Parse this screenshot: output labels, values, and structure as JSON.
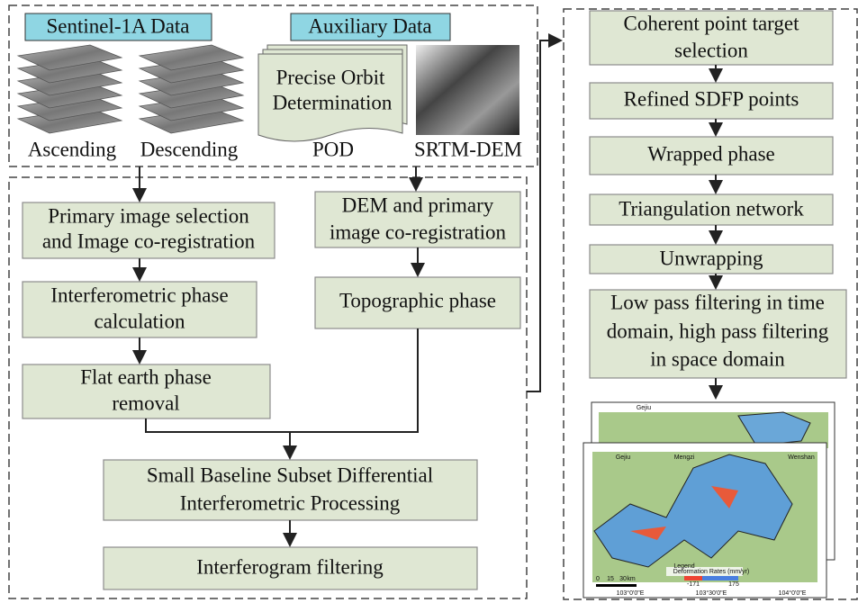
{
  "groups": {
    "sentinel": "Sentinel-1A Data",
    "auxiliary": "Auxiliary Data"
  },
  "inputs": {
    "ascending": "Ascending",
    "descending": "Descending",
    "orbit_doc": [
      "Precise Orbit",
      "Determination"
    ],
    "pod": "POD",
    "dem": "SRTM-DEM"
  },
  "nodes": [
    {
      "lines": [
        "Primary image selection",
        "and Image co-registration"
      ]
    },
    {
      "lines": [
        "Interferometric phase",
        "calculation"
      ]
    },
    {
      "lines": [
        "Flat earth phase",
        "removal"
      ]
    },
    {
      "lines": [
        "DEM and primary",
        "image co-registration"
      ]
    },
    {
      "lines": [
        "Topographic phase"
      ]
    },
    {
      "lines": [
        "Small Baseline Subset Differential",
        "Interferometric Processing"
      ]
    },
    {
      "lines": [
        "Interferogram filtering"
      ]
    },
    {
      "lines": [
        "Coherent point target",
        "selection"
      ]
    },
    {
      "lines": [
        "Refined SDFP points"
      ]
    },
    {
      "lines": [
        "Wrapped phase"
      ]
    },
    {
      "lines": [
        "Triangulation network"
      ]
    },
    {
      "lines": [
        "Unwrapping"
      ]
    },
    {
      "lines": [
        "Low pass filtering in time",
        "domain, high pass filtering",
        "in space domain"
      ]
    }
  ],
  "map": {
    "places": [
      "Gejiu",
      "Mengzi",
      "Wenshan"
    ],
    "lon_labels": [
      "103°0'0\"E",
      "103°30'0\"E",
      "104°0'0\"E"
    ],
    "legend": "Legend",
    "legend_title": "Deformation Rates (mm/yr)",
    "legend_min": "-171",
    "legend_max": "175",
    "scale_unit": "km",
    "scale_ticks": [
      "0",
      "15",
      "30"
    ]
  }
}
